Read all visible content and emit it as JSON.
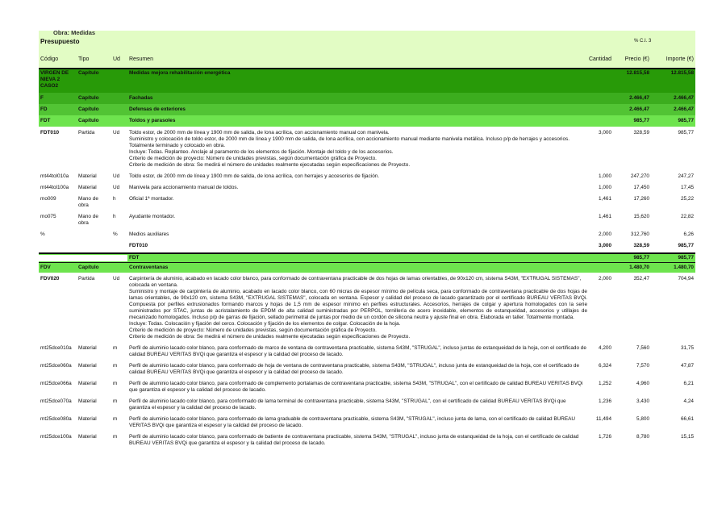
{
  "header": {
    "obra_label": "Obra: Medidas",
    "title": "Presupuesto",
    "ci": "% C.I. 3",
    "columns": {
      "codigo": "Código",
      "tipo": "Tipo",
      "ud": "Ud",
      "resumen": "Resumen",
      "cantidad": "Cantidad",
      "precio": "Precio (€)",
      "importe": "Importe (€)"
    }
  },
  "colors": {
    "chapter0": "#289a08",
    "chapter1": "#3cad1e",
    "chapter2": "#52c434",
    "chapter3": "#6ee44e",
    "header_bg": "#e2fcc4"
  },
  "rows": [
    {
      "kind": "c0",
      "code": "VIRGEN DE NIEVA 2 CASO2",
      "tipo": "Capítulo",
      "ud": "",
      "resumen": "Medidas mejora rehabilitación energética",
      "cantidad": "",
      "precio": "12.815,58",
      "importe": "12.815,58"
    },
    {
      "kind": "c1",
      "code": "F",
      "tipo": "Capítulo",
      "ud": "",
      "resumen": "Fachadas",
      "cantidad": "",
      "precio": "2.466,47",
      "importe": "2.466,47"
    },
    {
      "kind": "c2",
      "code": "FD",
      "tipo": "Capítulo",
      "ud": "",
      "resumen": "Defensas de exteriores",
      "cantidad": "",
      "precio": "2.466,47",
      "importe": "2.466,47"
    },
    {
      "kind": "c3",
      "code": "FDT",
      "tipo": "Capítulo",
      "ud": "",
      "resumen": "Toldos y parasoles",
      "cantidad": "",
      "precio": "985,77",
      "importe": "985,77"
    },
    {
      "kind": "part",
      "code": "FDT010",
      "tipo": "Partida",
      "ud": "Ud",
      "resumen": "Toldo estor, de 2000 mm de línea y 1900 mm de salida, de lona acrílica, con accionamiento manual con manivela.",
      "cantidad": "3,000",
      "precio": "328,59",
      "importe": "985,77",
      "desc": [
        "Suministro y colocación de toldo estor, de 2000 mm de línea y 1900 mm de salida, de lona acrílica, con accionamiento manual mediante manivela metálica. Incluso p/p de herrajes y accesorios. Totalmente terminado y colocado en obra.",
        "Incluye: Todas. Replanteo. Anclaje al paramento de los elementos de fijación. Montaje del toldo y de los accesorios.",
        "Criterio de medición de proyecto: Número de unidades previstas, según documentación gráfica de Proyecto.",
        "Criterio de medición de obra: Se medirá el número de unidades realmente ejecutadas según especificaciones de Proyecto."
      ],
      "justify": false
    },
    {
      "kind": "it",
      "code": "mt44tol010a",
      "tipo": "Material",
      "ud": "Ud",
      "resumen": "Toldo estor, de 2000 mm de línea y 1900 mm de salida, de lona acrílica, con herrajes y accesorios de fijación.",
      "cantidad": "1,000",
      "precio": "247,270",
      "importe": "247,27"
    },
    {
      "kind": "it",
      "code": "mt44tol100a",
      "tipo": "Material",
      "ud": "Ud",
      "resumen": "Manivela para accionamiento manual de toldos.",
      "cantidad": "1,000",
      "precio": "17,450",
      "importe": "17,45"
    },
    {
      "kind": "it",
      "code": "mo009",
      "tipo": "Mano de obra",
      "ud": "h",
      "resumen": "Oficial 1ª montador.",
      "cantidad": "1,461",
      "precio": "17,260",
      "importe": "25,22"
    },
    {
      "kind": "it",
      "code": "mo075",
      "tipo": "Mano de obra",
      "ud": "h",
      "resumen": "Ayudante montador.",
      "cantidad": "1,461",
      "precio": "15,620",
      "importe": "22,82"
    },
    {
      "kind": "it",
      "code": "%",
      "tipo": "",
      "ud": "%",
      "resumen": "Medios auxiliares",
      "cantidad": "2,000",
      "precio": "312,760",
      "importe": "6,26"
    },
    {
      "kind": "tot",
      "code": "",
      "tipo": "",
      "ud": "",
      "resumen": "FDT010",
      "cantidad": "3,000",
      "precio": "328,59",
      "importe": "985,77"
    },
    {
      "kind": "c4",
      "code": "",
      "tipo": "",
      "ud": "",
      "resumen": "FDT",
      "cantidad": "",
      "precio": "985,77",
      "importe": "985,77"
    },
    {
      "kind": "c5",
      "code": "FDV",
      "tipo": "Capítulo",
      "ud": "",
      "resumen": "Contraventanas",
      "cantidad": "",
      "precio": "1.480,70",
      "importe": "1.480,70"
    },
    {
      "kind": "part",
      "code": "FDV020",
      "tipo": "Partida",
      "ud": "Ud",
      "resumen": "Carpintería de aluminio, acabado en lacado color blanco, para conformado de contraventana practicable de dos hojas de lamas orientables, de 90x120 cm, sistema S43M, \"EXTRUGAL SISTEMAS\", colocada en ventana.",
      "cantidad": "2,000",
      "precio": "352,47",
      "importe": "704,94",
      "desc": [
        "Suministro y montaje de carpintería de aluminio, acabado en lacado color blanco, con 60 micras de espesor mínimo de película seca, para conformado de contraventana practicable de dos hojas de lamas orientables, de 90x120 cm, sistema S43M, \"EXTRUGAL SISTEMAS\", colocada en ventana. Espesor y calidad del proceso de lacado garantizado por el certificado BUREAU VERITAS BVQi. Compuesta por perfiles extrusionados formando marcos y hojas de 1,5 mm de espesor mínimo en perfiles estructurales. Accesorios, herrajes de colgar y apertura homologados con la serie suministrados por STAC, juntas de acristalamiento de EPDM de alta calidad suministradas por PERPOL, tornillería de acero inoxidable, elementos de estanqueidad, accesorios y utillajes de mecanizado homologados. Incluso p/p de garras de fijación, sellado perimetral de juntas por medio de un cordón de silicona neutra y ajuste final en obra. Elaborada en taller. Totalmente montada.",
        "Incluye: Todas. Colocación y fijación del cerco. Colocación y fijación de los elementos de colgar. Colocación de la hoja.",
        "Criterio de medición de proyecto: Número de unidades previstas, según documentación gráfica de Proyecto.",
        "Criterio de medición de obra: Se medirá el número de unidades realmente ejecutadas según especificaciones de Proyecto."
      ],
      "justify": true
    },
    {
      "kind": "it",
      "code": "mt25dce010a",
      "tipo": "Material",
      "ud": "m",
      "resumen": "Perfil de aluminio lacado color blanco, para conformado de marco de ventana de contraventana practicable, sistema S43M, \"STRUGAL\", incluso juntas de estanqueidad de la hoja, con el certificado de calidad BUREAU VERITAS BVQi que garantiza el espesor y la calidad del proceso de lacado.",
      "cantidad": "4,200",
      "precio": "7,560",
      "importe": "31,75"
    },
    {
      "kind": "it",
      "code": "mt25dce060a",
      "tipo": "Material",
      "ud": "m",
      "resumen": "Perfil de aluminio lacado color blanco, para conformado de hoja de ventana de contraventana practicable, sistema S43M, \"STRUGAL\", incluso junta de estanqueidad de la hoja, con el certificado de calidad BUREAU VERITAS BVQi que garantiza el espesor y la calidad del proceso de lacado.",
      "cantidad": "6,324",
      "precio": "7,570",
      "importe": "47,87"
    },
    {
      "kind": "it",
      "code": "mt25dce066a",
      "tipo": "Material",
      "ud": "m",
      "resumen": "Perfil de aluminio lacado color blanco, para conformado de complemento portalamas de contraventana practicable, sistema S43M, \"STRUGAL\", con el certificado de calidad BUREAU VERITAS BVQi que garantiza el espesor y la calidad del proceso de lacado.",
      "cantidad": "1,252",
      "precio": "4,960",
      "importe": "6,21"
    },
    {
      "kind": "it",
      "code": "mt25dce070a",
      "tipo": "Material",
      "ud": "m",
      "resumen": "Perfil de aluminio lacado color blanco, para conformado de lama terminal de contraventana practicable, sistema S43M, \"STRUGAL\", con el certificado de calidad BUREAU VERITAS BVQi que garantiza el espesor y la calidad del proceso de lacado.",
      "cantidad": "1,236",
      "precio": "3,430",
      "importe": "4,24"
    },
    {
      "kind": "it",
      "code": "mt25dce080a",
      "tipo": "Material",
      "ud": "m",
      "resumen": "Perfil de aluminio lacado color blanco, para conformado de lama graduable de contraventana practicable, sistema S43M, \"STRUGAL\", incluso junta de lama, con el certificado de calidad BUREAU VERITAS BVQi que garantiza el espesor y la calidad del proceso de lacado.",
      "cantidad": "11,494",
      "precio": "5,800",
      "importe": "66,61"
    },
    {
      "kind": "it",
      "code": "mt25dce100a",
      "tipo": "Material",
      "ud": "m",
      "resumen": "Perfil de aluminio lacado color blanco, para conformado de batiente de contraventana practicable, sistema S43M, \"STRUGAL\", incluso junta de estanqueidad de la hoja, con el certificado de calidad BUREAU VERITAS BVQi que garantiza el espesor y la calidad del proceso de lacado.",
      "cantidad": "1,726",
      "precio": "8,780",
      "importe": "15,15"
    }
  ]
}
